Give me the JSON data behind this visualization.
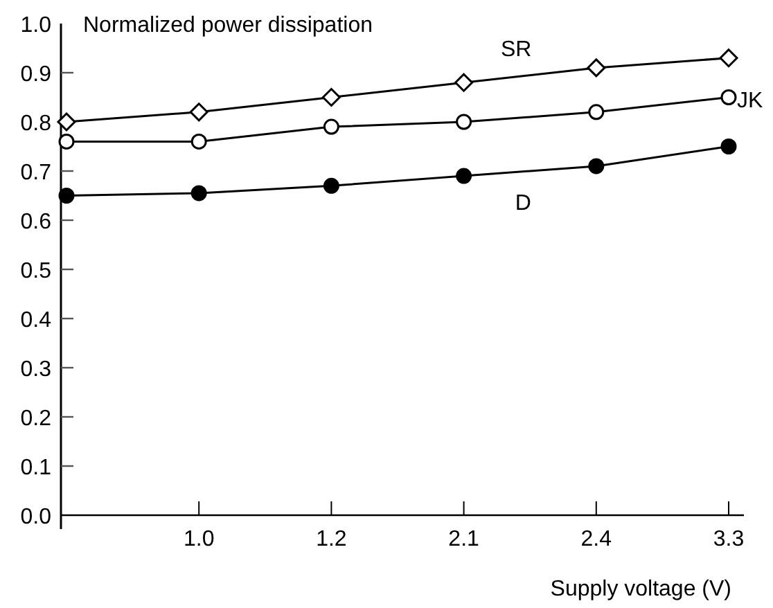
{
  "chart_data": {
    "type": "line",
    "ylabel": "Normalized power dissipation",
    "xlabel": "Supply voltage (V)",
    "categories": [
      null,
      "1.0",
      "1.2",
      "2.1",
      "2.4",
      "3.3"
    ],
    "ylim": [
      0,
      1.0
    ],
    "yticks": [
      {
        "value": 0,
        "label": "0.0"
      },
      0.1,
      0.2,
      0.3,
      0.4,
      0.5,
      0.6,
      0.7,
      0.8,
      0.9,
      {
        "value": 1,
        "label": "1.0"
      }
    ],
    "series": [
      {
        "name": "SR",
        "color": "#000000",
        "marker": "diamond",
        "values": [
          0.8,
          0.82,
          0.85,
          0.88,
          0.91,
          0.93
        ]
      },
      {
        "name": "JK",
        "color": "#000000",
        "marker": "circle",
        "values": [
          0.76,
          0.76,
          0.79,
          0.8,
          0.82,
          0.85
        ]
      },
      {
        "name": "D",
        "color": "#000000",
        "marker": "circle",
        "values": [
          0.65,
          0.655,
          0.67,
          0.69,
          0.71,
          0.75
        ]
      }
    ]
  }
}
